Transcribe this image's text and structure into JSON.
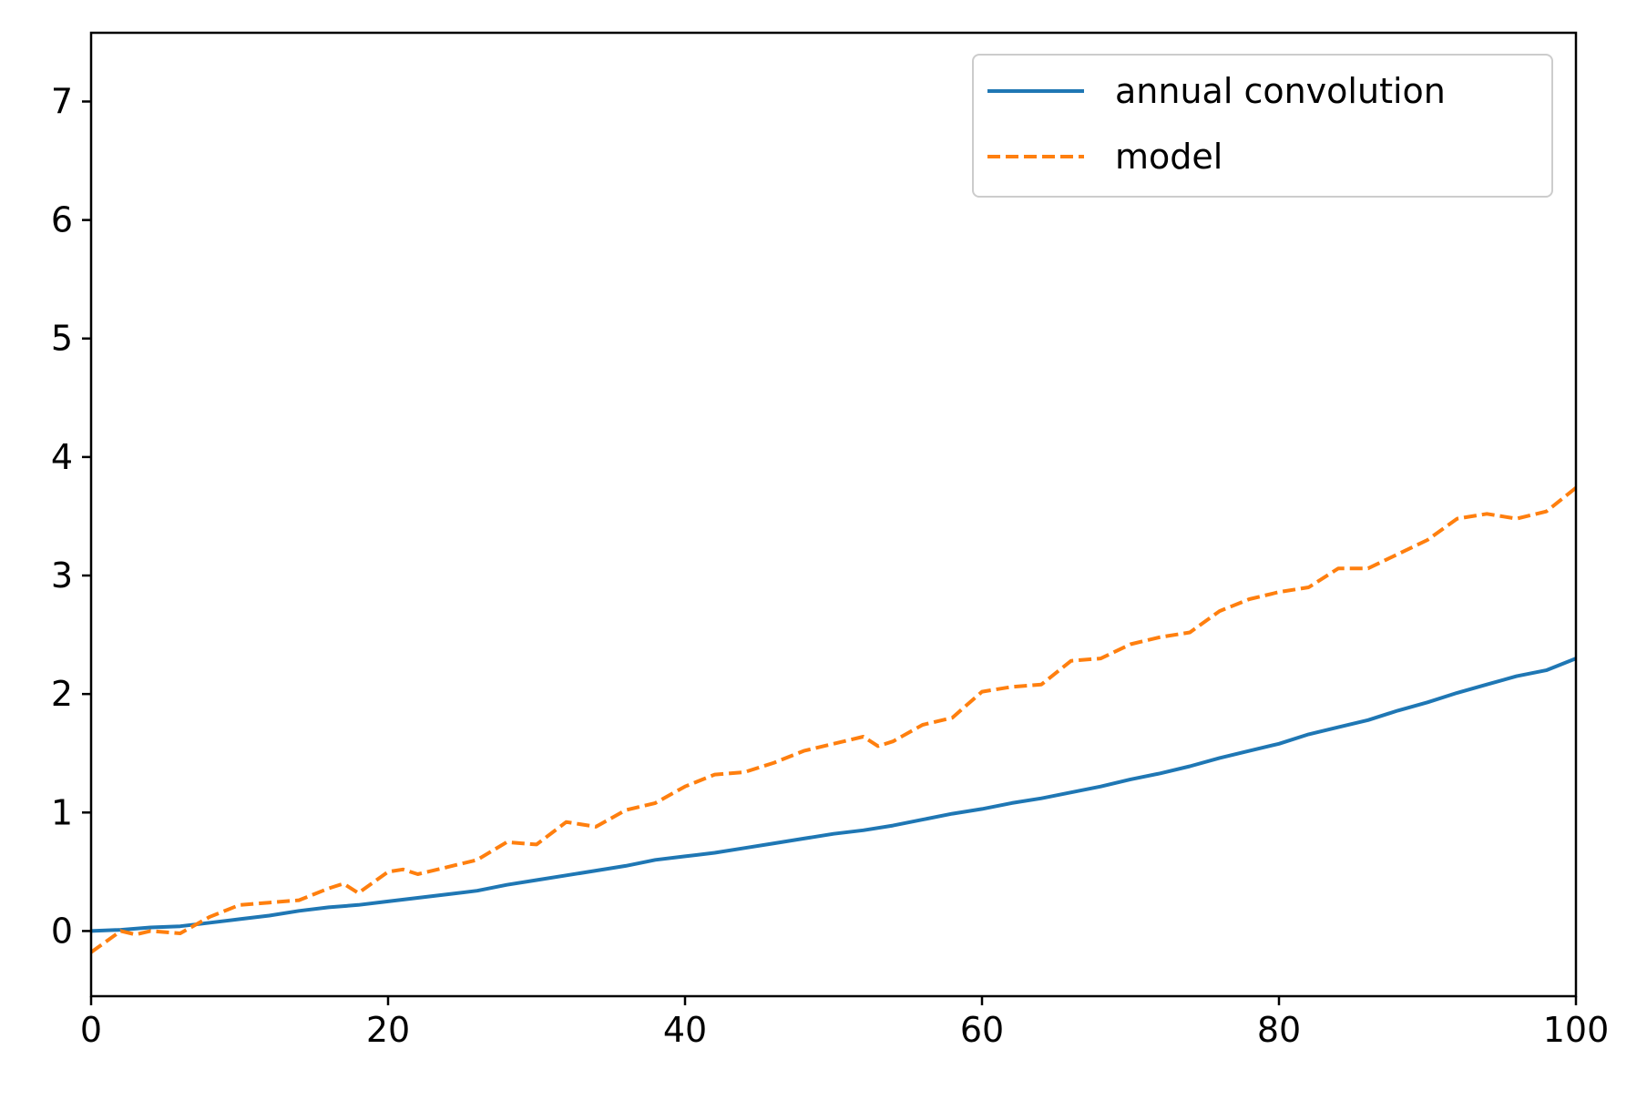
{
  "chart_data": {
    "type": "line",
    "title": "",
    "xlabel": "",
    "ylabel": "",
    "xlim": [
      0,
      100
    ],
    "ylim": [
      -0.55,
      7.58
    ],
    "x_ticks": [
      0,
      20,
      40,
      60,
      80,
      100
    ],
    "y_ticks": [
      0,
      1,
      2,
      3,
      4,
      5,
      6,
      7
    ],
    "grid": false,
    "legend_position": "top-right",
    "series": [
      {
        "name": "annual convolution",
        "color": "#1f77b4",
        "style": "solid",
        "x": [
          0,
          2,
          4,
          6,
          8,
          10,
          12,
          14,
          16,
          18,
          20,
          22,
          24,
          26,
          28,
          30,
          32,
          34,
          36,
          38,
          40,
          42,
          44,
          46,
          48,
          50,
          52,
          54,
          56,
          58,
          60,
          62,
          64,
          66,
          68,
          70,
          72,
          74,
          76,
          78,
          80,
          82,
          84,
          86,
          88,
          90,
          92,
          94,
          96,
          98,
          100
        ],
        "y": [
          0.0,
          0.01,
          0.03,
          0.04,
          0.07,
          0.1,
          0.13,
          0.17,
          0.2,
          0.22,
          0.25,
          0.28,
          0.31,
          0.34,
          0.39,
          0.43,
          0.47,
          0.51,
          0.55,
          0.6,
          0.63,
          0.66,
          0.7,
          0.74,
          0.78,
          0.82,
          0.85,
          0.89,
          0.94,
          0.99,
          1.03,
          1.08,
          1.12,
          1.17,
          1.22,
          1.28,
          1.33,
          1.39,
          1.46,
          1.52,
          1.58,
          1.66,
          1.72,
          1.78,
          1.86,
          1.93,
          2.01,
          2.08,
          2.15,
          2.2,
          2.3
        ]
      },
      {
        "name": "model",
        "color": "#ff7f0e",
        "style": "dashed",
        "x": [
          0,
          2,
          3,
          4,
          6,
          8,
          10,
          12,
          14,
          16,
          17,
          18,
          20,
          21,
          22,
          24,
          26,
          28,
          30,
          32,
          34,
          36,
          38,
          40,
          42,
          44,
          46,
          48,
          50,
          52,
          53,
          54,
          56,
          58,
          60,
          62,
          64,
          66,
          68,
          70,
          72,
          74,
          76,
          78,
          80,
          82,
          84,
          86,
          88,
          90,
          92,
          94,
          96,
          98,
          100
        ],
        "y": [
          -0.18,
          0.0,
          -0.03,
          0.0,
          -0.02,
          0.12,
          0.22,
          0.24,
          0.26,
          0.36,
          0.4,
          0.32,
          0.5,
          0.52,
          0.48,
          0.54,
          0.6,
          0.75,
          0.73,
          0.92,
          0.88,
          1.02,
          1.08,
          1.22,
          1.32,
          1.34,
          1.42,
          1.52,
          1.58,
          1.64,
          1.56,
          1.6,
          1.74,
          1.8,
          2.02,
          2.06,
          2.08,
          2.28,
          2.3,
          2.42,
          2.48,
          2.52,
          2.7,
          2.8,
          2.86,
          2.9,
          3.06,
          3.06,
          3.18,
          3.3,
          3.48,
          3.52,
          3.48,
          3.54,
          3.74
        ]
      }
    ]
  }
}
